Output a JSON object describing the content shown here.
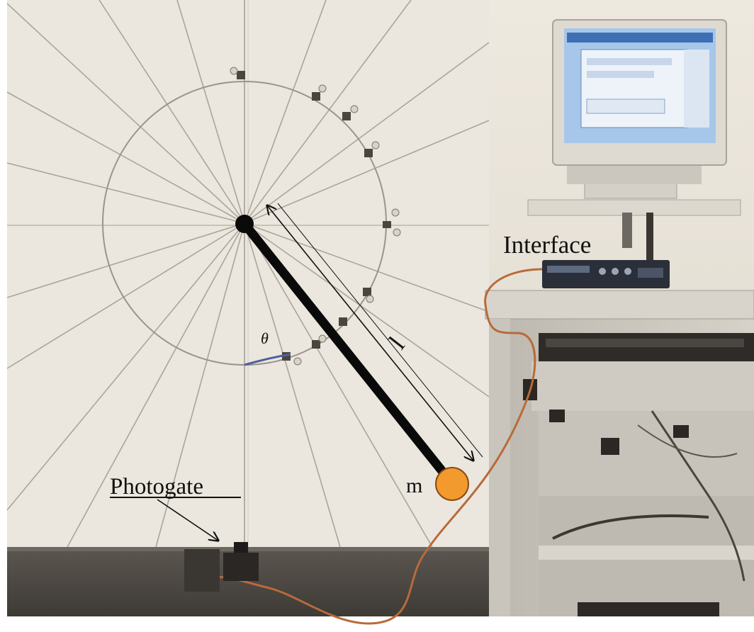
{
  "labels": {
    "photogate": "Photogate",
    "interface": "Interface",
    "length": "l",
    "mass": "m",
    "angle": "θ"
  },
  "colors": {
    "board": "#ece8df",
    "board_lines": "#a9a59d",
    "rod": "#0a0a0a",
    "bob": "#f39a2e",
    "bob_outline": "#8a4a12",
    "wire": "#b86a3a",
    "table_top": "#ddd9d0",
    "floor_dark": "#4e4a45",
    "monitor_screen": "#9dc1e7"
  },
  "icons": {
    "pivot": "pivot-dot-icon",
    "bob": "orange-bob-icon",
    "monitor": "computer-monitor-icon",
    "interface_box": "interface-box-icon",
    "photogate": "photogate-sensor-icon"
  }
}
